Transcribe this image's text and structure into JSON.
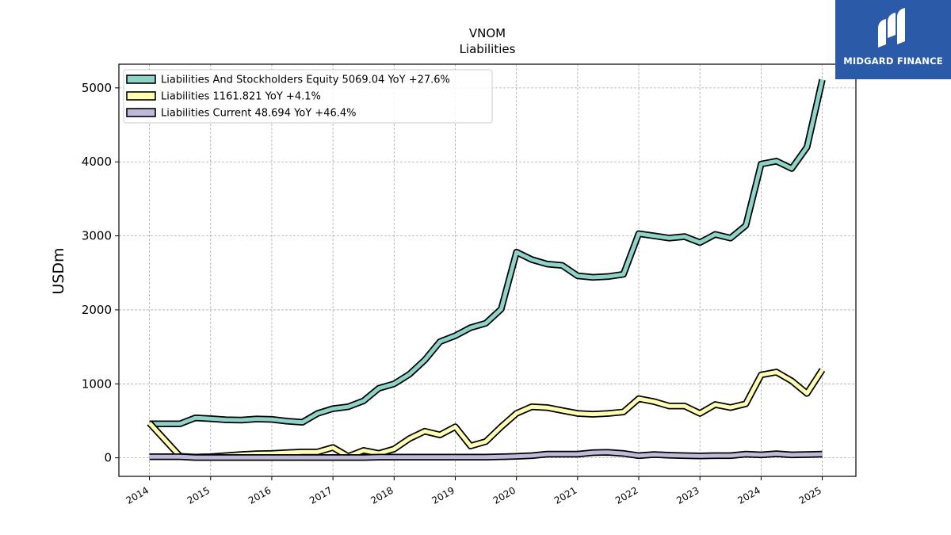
{
  "brand": {
    "logo_text": "MIDGARD FINANCE",
    "logo_color": "#2b5aa8",
    "logo_icon": "midgard-logo-icon"
  },
  "chart_data": {
    "type": "line",
    "title": "VNOM",
    "subtitle": "Liabilities",
    "xlabel": "",
    "ylabel": "USDm",
    "xlim": [
      2013.5,
      2025.55
    ],
    "ylim": [
      -250,
      5320
    ],
    "xticks": [
      "2014",
      "2015",
      "2016",
      "2017",
      "2018",
      "2019",
      "2020",
      "2021",
      "2022",
      "2023",
      "2024",
      "2025"
    ],
    "yticks": [
      0,
      1000,
      2000,
      3000,
      4000,
      5000
    ],
    "grid": true,
    "legend_position": "top-left",
    "series": [
      {
        "name": "Liabilities And Stockholders Equity",
        "legend": "Liabilities And Stockholders Equity  5069.04 YoY +27.6%",
        "color": "#8dd3c7",
        "points": [
          [
            2014.0,
            460
          ],
          [
            2014.5,
            460
          ],
          [
            2014.75,
            540
          ],
          [
            2015.0,
            530
          ],
          [
            2015.25,
            515
          ],
          [
            2015.5,
            510
          ],
          [
            2015.75,
            525
          ],
          [
            2016.0,
            520
          ],
          [
            2016.25,
            495
          ],
          [
            2016.5,
            480
          ],
          [
            2016.75,
            600
          ],
          [
            2017.0,
            665
          ],
          [
            2017.25,
            690
          ],
          [
            2017.5,
            770
          ],
          [
            2017.75,
            940
          ],
          [
            2018.0,
            1000
          ],
          [
            2018.25,
            1130
          ],
          [
            2018.5,
            1320
          ],
          [
            2018.75,
            1570
          ],
          [
            2019.0,
            1650
          ],
          [
            2019.25,
            1760
          ],
          [
            2019.5,
            1820
          ],
          [
            2019.75,
            2010
          ],
          [
            2020.0,
            2780
          ],
          [
            2020.25,
            2680
          ],
          [
            2020.5,
            2620
          ],
          [
            2020.75,
            2600
          ],
          [
            2021.0,
            2460
          ],
          [
            2021.25,
            2440
          ],
          [
            2021.5,
            2450
          ],
          [
            2021.75,
            2480
          ],
          [
            2022.0,
            3030
          ],
          [
            2022.25,
            3000
          ],
          [
            2022.5,
            2970
          ],
          [
            2022.75,
            2990
          ],
          [
            2023.0,
            2910
          ],
          [
            2023.25,
            3020
          ],
          [
            2023.5,
            2970
          ],
          [
            2023.75,
            3140
          ],
          [
            2024.0,
            3970
          ],
          [
            2024.25,
            4010
          ],
          [
            2024.5,
            3910
          ],
          [
            2024.75,
            4200
          ],
          [
            2025.0,
            5110
          ]
        ]
      },
      {
        "name": "Liabilities",
        "legend": "Liabilities  1161.821 YoY +4.1%",
        "color": "#ffffb3",
        "points": [
          [
            2014.0,
            470
          ],
          [
            2014.5,
            20
          ],
          [
            2014.75,
            10
          ],
          [
            2015.0,
            15
          ],
          [
            2015.25,
            30
          ],
          [
            2015.5,
            45
          ],
          [
            2015.75,
            55
          ],
          [
            2016.0,
            60
          ],
          [
            2016.25,
            70
          ],
          [
            2016.5,
            80
          ],
          [
            2016.75,
            80
          ],
          [
            2017.0,
            140
          ],
          [
            2017.25,
            20
          ],
          [
            2017.5,
            100
          ],
          [
            2017.75,
            60
          ],
          [
            2018.0,
            120
          ],
          [
            2018.25,
            260
          ],
          [
            2018.5,
            360
          ],
          [
            2018.75,
            310
          ],
          [
            2019.0,
            420
          ],
          [
            2019.25,
            160
          ],
          [
            2019.5,
            220
          ],
          [
            2019.75,
            420
          ],
          [
            2020.0,
            600
          ],
          [
            2020.25,
            690
          ],
          [
            2020.5,
            680
          ],
          [
            2020.75,
            640
          ],
          [
            2021.0,
            600
          ],
          [
            2021.25,
            590
          ],
          [
            2021.5,
            600
          ],
          [
            2021.75,
            620
          ],
          [
            2022.0,
            800
          ],
          [
            2022.25,
            760
          ],
          [
            2022.5,
            700
          ],
          [
            2022.75,
            700
          ],
          [
            2023.0,
            600
          ],
          [
            2023.25,
            720
          ],
          [
            2023.5,
            680
          ],
          [
            2023.75,
            730
          ],
          [
            2024.0,
            1120
          ],
          [
            2024.25,
            1160
          ],
          [
            2024.5,
            1040
          ],
          [
            2024.75,
            870
          ],
          [
            2025.0,
            1190
          ]
        ]
      },
      {
        "name": "Liabilities Current",
        "legend": "Liabilities Current  48.694 YoY +46.4%",
        "color": "#bebada",
        "points": [
          [
            2014.0,
            15
          ],
          [
            2014.5,
            15
          ],
          [
            2014.75,
            5
          ],
          [
            2015.0,
            5
          ],
          [
            2015.25,
            5
          ],
          [
            2015.5,
            5
          ],
          [
            2015.75,
            5
          ],
          [
            2016.0,
            5
          ],
          [
            2016.25,
            5
          ],
          [
            2016.5,
            5
          ],
          [
            2016.75,
            5
          ],
          [
            2017.0,
            5
          ],
          [
            2017.25,
            5
          ],
          [
            2017.5,
            5
          ],
          [
            2017.75,
            10
          ],
          [
            2018.0,
            10
          ],
          [
            2018.25,
            10
          ],
          [
            2018.5,
            10
          ],
          [
            2018.75,
            10
          ],
          [
            2019.0,
            10
          ],
          [
            2019.25,
            10
          ],
          [
            2019.5,
            10
          ],
          [
            2019.75,
            15
          ],
          [
            2020.0,
            20
          ],
          [
            2020.25,
            30
          ],
          [
            2020.5,
            50
          ],
          [
            2020.75,
            50
          ],
          [
            2021.0,
            50
          ],
          [
            2021.25,
            70
          ],
          [
            2021.5,
            75
          ],
          [
            2021.75,
            60
          ],
          [
            2022.0,
            30
          ],
          [
            2022.25,
            45
          ],
          [
            2022.5,
            35
          ],
          [
            2022.75,
            30
          ],
          [
            2023.0,
            25
          ],
          [
            2023.25,
            30
          ],
          [
            2023.5,
            30
          ],
          [
            2023.75,
            50
          ],
          [
            2024.0,
            40
          ],
          [
            2024.25,
            55
          ],
          [
            2024.5,
            40
          ],
          [
            2024.75,
            45
          ],
          [
            2025.0,
            50
          ]
        ]
      }
    ]
  }
}
